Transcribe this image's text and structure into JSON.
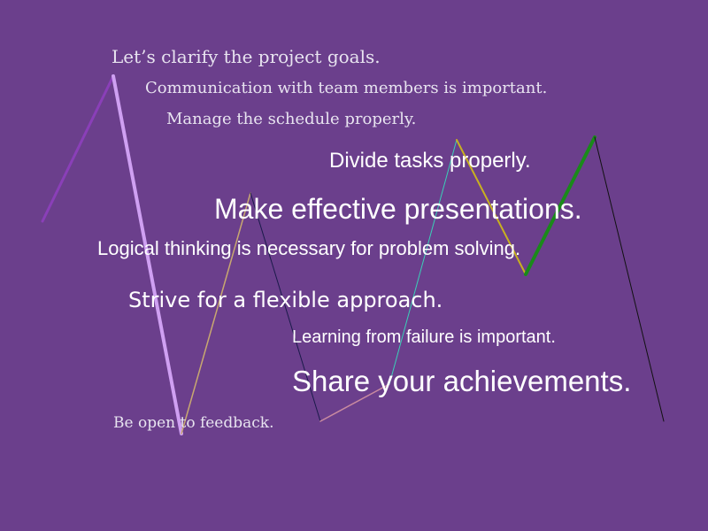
{
  "background": "#6b3f8c",
  "phrases": [
    "Let’s clarify the project goals.",
    "Communication with team members is important.",
    "Manage the schedule properly.",
    "Divide tasks properly.",
    "Make effective presentations.",
    "Logical thinking is necessary for problem solving.",
    "Strive for a flexible approach.",
    "Learning from failure is important.",
    "Share your achievements.",
    "Be open to feedback."
  ],
  "line_colors": [
    "#8a3fb8",
    "#cfa0f2",
    "#c8a870",
    "#1a1a4a",
    "#c98aa0",
    "#3ad0b8",
    "#c8b020",
    "#1a8a1a",
    "#111111"
  ]
}
